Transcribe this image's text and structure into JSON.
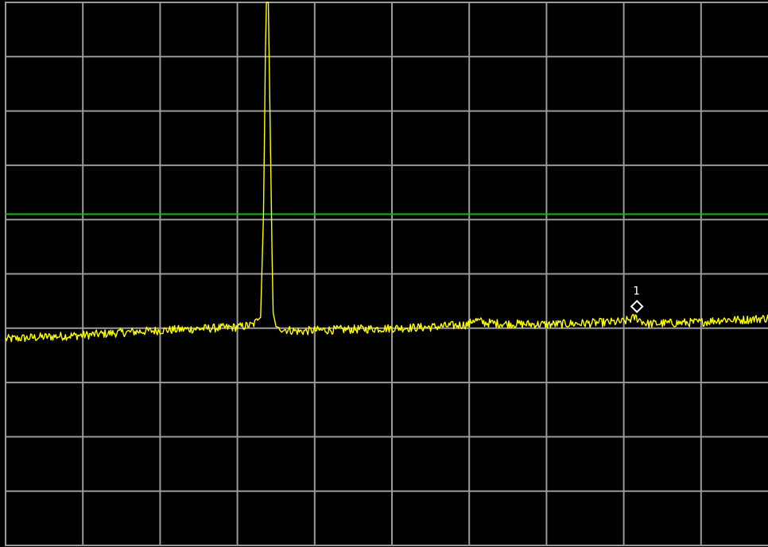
{
  "chart_data": {
    "type": "line",
    "title": "",
    "xlabel": "",
    "ylabel": "",
    "grid": true,
    "grid_divisions": {
      "x": 10,
      "y": 10
    },
    "xlim": [
      0,
      10
    ],
    "ylim": [
      0,
      10
    ],
    "colors": {
      "background": "#000000",
      "grid": "#9a9a9a",
      "trace": "#ffff00",
      "threshold": "#00c000",
      "marker": "#ffffff"
    },
    "threshold_line": {
      "y": 6.1
    },
    "marker": {
      "label": "1",
      "x": 8.17,
      "y": 4.4
    },
    "trace": {
      "x": [
        0.0,
        0.5,
        1.0,
        1.5,
        2.0,
        2.5,
        3.0,
        3.2,
        3.3,
        3.34,
        3.37,
        3.4,
        3.43,
        3.46,
        3.5,
        3.6,
        3.8,
        4.0,
        4.5,
        5.0,
        5.5,
        6.0,
        6.05,
        6.2,
        6.5,
        7.0,
        7.5,
        8.0,
        8.15,
        8.3,
        8.5,
        9.0,
        9.3,
        9.5,
        10.0
      ],
      "y": [
        3.8,
        3.84,
        3.87,
        3.92,
        3.96,
        3.99,
        4.02,
        4.06,
        4.2,
        6.2,
        10.0,
        10.0,
        7.2,
        4.3,
        4.03,
        3.98,
        3.94,
        3.96,
        3.98,
        4.0,
        4.02,
        4.07,
        4.16,
        4.1,
        4.08,
        4.07,
        4.09,
        4.12,
        4.2,
        4.08,
        4.09,
        4.11,
        4.16,
        4.15,
        4.2
      ]
    }
  }
}
